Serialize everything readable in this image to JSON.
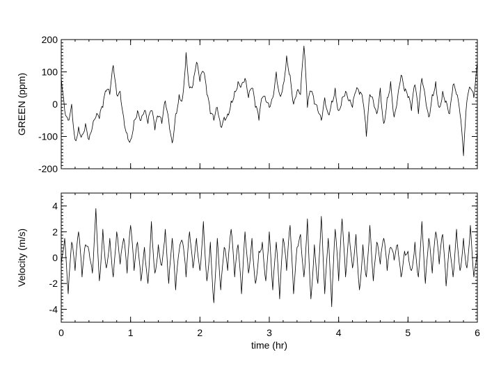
{
  "chart_data": [
    {
      "type": "line",
      "panel": "top",
      "xlabel": "",
      "ylabel": "GREEN (ppm)",
      "xlim": [
        0,
        6
      ],
      "ylim": [
        -200,
        200
      ],
      "xticks": [
        0,
        1,
        2,
        3,
        4,
        5,
        6
      ],
      "xtick_labels": [],
      "yticks": [
        -200,
        -100,
        0,
        100,
        200
      ],
      "ytick_labels": [
        "-200",
        "-100",
        "0",
        "100",
        "200"
      ],
      "grid": false,
      "series": [
        {
          "x": [
            0,
            0.05,
            0.1,
            0.15,
            0.2,
            0.25,
            0.3,
            0.35,
            0.4,
            0.45,
            0.5,
            0.55,
            0.6,
            0.65,
            0.7,
            0.75,
            0.8,
            0.85,
            0.9,
            0.95,
            1.0,
            1.05,
            1.1,
            1.15,
            1.2,
            1.25,
            1.3,
            1.35,
            1.4,
            1.45,
            1.5,
            1.55,
            1.6,
            1.65,
            1.7,
            1.75,
            1.8,
            1.85,
            1.9,
            1.95,
            2.0,
            2.05,
            2.1,
            2.15,
            2.2,
            2.25,
            2.3,
            2.35,
            2.4,
            2.45,
            2.5,
            2.55,
            2.6,
            2.65,
            2.7,
            2.75,
            2.8,
            2.85,
            2.9,
            2.95,
            3.0,
            3.05,
            3.1,
            3.15,
            3.2,
            3.25,
            3.3,
            3.35,
            3.4,
            3.45,
            3.5,
            3.55,
            3.6,
            3.65,
            3.7,
            3.75,
            3.8,
            3.85,
            3.9,
            3.95,
            4.0,
            4.05,
            4.1,
            4.15,
            4.2,
            4.25,
            4.3,
            4.35,
            4.4,
            4.45,
            4.5,
            4.55,
            4.6,
            4.65,
            4.7,
            4.75,
            4.8,
            4.85,
            4.9,
            4.95,
            5.0,
            5.05,
            5.1,
            5.15,
            5.2,
            5.25,
            5.3,
            5.35,
            5.4,
            5.45,
            5.5,
            5.55,
            5.6,
            5.65,
            5.7,
            5.75,
            5.8,
            5.85,
            5.9,
            5.95,
            6.0
          ],
          "values": [
            80,
            -20,
            -50,
            0,
            -110,
            -70,
            -95,
            -60,
            -110,
            -70,
            -40,
            -45,
            -10,
            40,
            30,
            120,
            30,
            40,
            -40,
            -90,
            -110,
            -50,
            -20,
            -50,
            -20,
            -60,
            -20,
            -80,
            -40,
            -60,
            10,
            -50,
            -120,
            -30,
            30,
            20,
            160,
            50,
            60,
            130,
            70,
            100,
            30,
            -30,
            -50,
            -10,
            -70,
            -40,
            -30,
            10,
            40,
            70,
            60,
            80,
            20,
            50,
            -10,
            -50,
            20,
            10,
            -10,
            20,
            100,
            30,
            60,
            150,
            90,
            0,
            40,
            30,
            180,
            -10,
            40,
            0,
            -20,
            -50,
            20,
            -30,
            10,
            50,
            -20,
            20,
            40,
            10,
            -10,
            40,
            30,
            10,
            -100,
            30,
            10,
            -30,
            50,
            -60,
            20,
            70,
            -40,
            20,
            90,
            40,
            20,
            -20,
            60,
            -30,
            80,
            20,
            -40,
            30,
            70,
            -10,
            40,
            10,
            -30,
            60,
            30,
            -30,
            -160,
            10,
            50,
            20,
            130
          ]
        }
      ]
    },
    {
      "type": "line",
      "panel": "bottom",
      "xlabel": "time (hr)",
      "ylabel": "Velocity (m/s)",
      "xlim": [
        0,
        6
      ],
      "ylim": [
        -5,
        5
      ],
      "xticks": [
        0,
        1,
        2,
        3,
        4,
        5,
        6
      ],
      "xtick_labels": [
        "0",
        "1",
        "2",
        "3",
        "4",
        "5",
        "6"
      ],
      "yticks": [
        -4,
        -2,
        0,
        2,
        4
      ],
      "ytick_labels": [
        "-4",
        "-2",
        "0",
        "2",
        "4"
      ],
      "grid": false,
      "series": [
        {
          "x": [
            0,
            0.05,
            0.1,
            0.15,
            0.2,
            0.25,
            0.3,
            0.35,
            0.4,
            0.45,
            0.5,
            0.55,
            0.6,
            0.65,
            0.7,
            0.75,
            0.8,
            0.85,
            0.9,
            0.95,
            1.0,
            1.05,
            1.1,
            1.15,
            1.2,
            1.25,
            1.3,
            1.35,
            1.4,
            1.45,
            1.5,
            1.55,
            1.6,
            1.65,
            1.7,
            1.75,
            1.8,
            1.85,
            1.9,
            1.95,
            2.0,
            2.05,
            2.1,
            2.15,
            2.2,
            2.25,
            2.3,
            2.35,
            2.4,
            2.45,
            2.5,
            2.55,
            2.6,
            2.65,
            2.7,
            2.75,
            2.8,
            2.85,
            2.9,
            2.95,
            3.0,
            3.05,
            3.1,
            3.15,
            3.2,
            3.25,
            3.3,
            3.35,
            3.4,
            3.45,
            3.5,
            3.55,
            3.6,
            3.65,
            3.7,
            3.75,
            3.8,
            3.85,
            3.9,
            3.95,
            4.0,
            4.05,
            4.1,
            4.15,
            4.2,
            4.25,
            4.3,
            4.35,
            4.4,
            4.45,
            4.5,
            4.55,
            4.6,
            4.65,
            4.7,
            4.75,
            4.8,
            4.85,
            4.9,
            4.95,
            5.0,
            5.05,
            5.1,
            5.15,
            5.2,
            5.25,
            5.3,
            5.35,
            5.4,
            5.45,
            5.5,
            5.55,
            5.6,
            5.65,
            5.7,
            5.75,
            5.8,
            5.85,
            5.9,
            5.95,
            6.0
          ],
          "values": [
            -0.5,
            1.5,
            -2.8,
            1.2,
            -1.0,
            2.0,
            -1.5,
            1.0,
            0.5,
            -1.2,
            3.8,
            -1.8,
            2.2,
            -0.8,
            1.5,
            -1.5,
            2.0,
            -0.5,
            1.5,
            -1.2,
            2.5,
            -1.0,
            1.2,
            -1.8,
            0.8,
            -2.0,
            2.8,
            -1.2,
            1.0,
            -0.6,
            2.2,
            -2.0,
            1.5,
            -2.5,
            0.5,
            1.2,
            -1.5,
            2.0,
            -0.8,
            1.5,
            -1.0,
            2.8,
            -1.8,
            1.2,
            -3.5,
            1.5,
            -2.5,
            0.8,
            -1.0,
            2.2,
            -1.5,
            1.0,
            -2.8,
            2.0,
            -1.2,
            1.5,
            -2.0,
            0.5,
            1.2,
            -1.8,
            2.0,
            -2.5,
            1.2,
            -3.2,
            1.5,
            -1.0,
            2.5,
            -2.8,
            0.8,
            1.8,
            -1.5,
            3.0,
            -3.2,
            1.0,
            -2.0,
            3.2,
            -2.8,
            1.5,
            -3.8,
            2.2,
            -1.8,
            3.0,
            -1.5,
            2.0,
            -0.8,
            1.8,
            -2.5,
            1.0,
            -1.5,
            2.5,
            -1.8,
            1.2,
            -0.5,
            1.5,
            -1.0,
            0.8,
            -0.2,
            1.0,
            -1.5,
            0.5,
            0.5,
            -1.0,
            1.2,
            -1.5,
            2.8,
            -2.0,
            1.5,
            -1.2,
            2.0,
            -0.5,
            1.8,
            -2.2,
            1.0,
            -1.5,
            2.2,
            -1.0,
            1.5,
            -0.8,
            2.5,
            -1.5,
            0.5
          ]
        }
      ]
    }
  ]
}
